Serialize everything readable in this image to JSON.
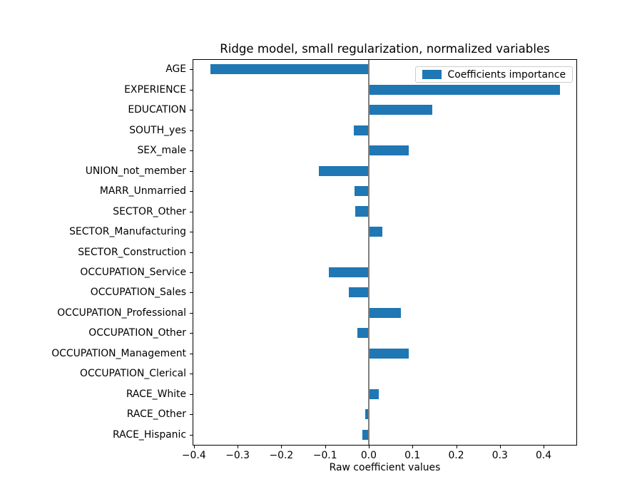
{
  "chart_data": {
    "type": "bar",
    "orientation": "horizontal",
    "title": "Ridge model, small regularization, normalized variables",
    "xlabel": "Raw coefficient values",
    "legend_label": "Coefficients importance",
    "legend_location": "upper right",
    "grid": false,
    "bar_color": "#1f77b4",
    "zero_line_color": "#808080",
    "categories": [
      "AGE",
      "EXPERIENCE",
      "EDUCATION",
      "SOUTH_yes",
      "SEX_male",
      "UNION_not_member",
      "MARR_Unmarried",
      "SECTOR_Other",
      "SECTOR_Manufacturing",
      "SECTOR_Construction",
      "OCCUPATION_Service",
      "OCCUPATION_Sales",
      "OCCUPATION_Professional",
      "OCCUPATION_Other",
      "OCCUPATION_Management",
      "OCCUPATION_Clerical",
      "RACE_White",
      "RACE_Other",
      "RACE_Hispanic"
    ],
    "values": [
      -0.362,
      0.437,
      0.146,
      -0.034,
      0.091,
      -0.115,
      -0.033,
      -0.031,
      0.031,
      0.0,
      -0.091,
      -0.045,
      0.073,
      -0.026,
      0.091,
      0.0,
      0.023,
      -0.008,
      -0.014
    ],
    "xlim": [
      -0.403,
      0.475
    ],
    "xtick_values": [
      -0.4,
      -0.3,
      -0.2,
      -0.1,
      0.0,
      0.1,
      0.2,
      0.3,
      0.4
    ],
    "xtick_labels": [
      "−0.4",
      "−0.3",
      "−0.2",
      "−0.1",
      "0.0",
      "0.1",
      "0.2",
      "0.3",
      "0.4"
    ]
  }
}
